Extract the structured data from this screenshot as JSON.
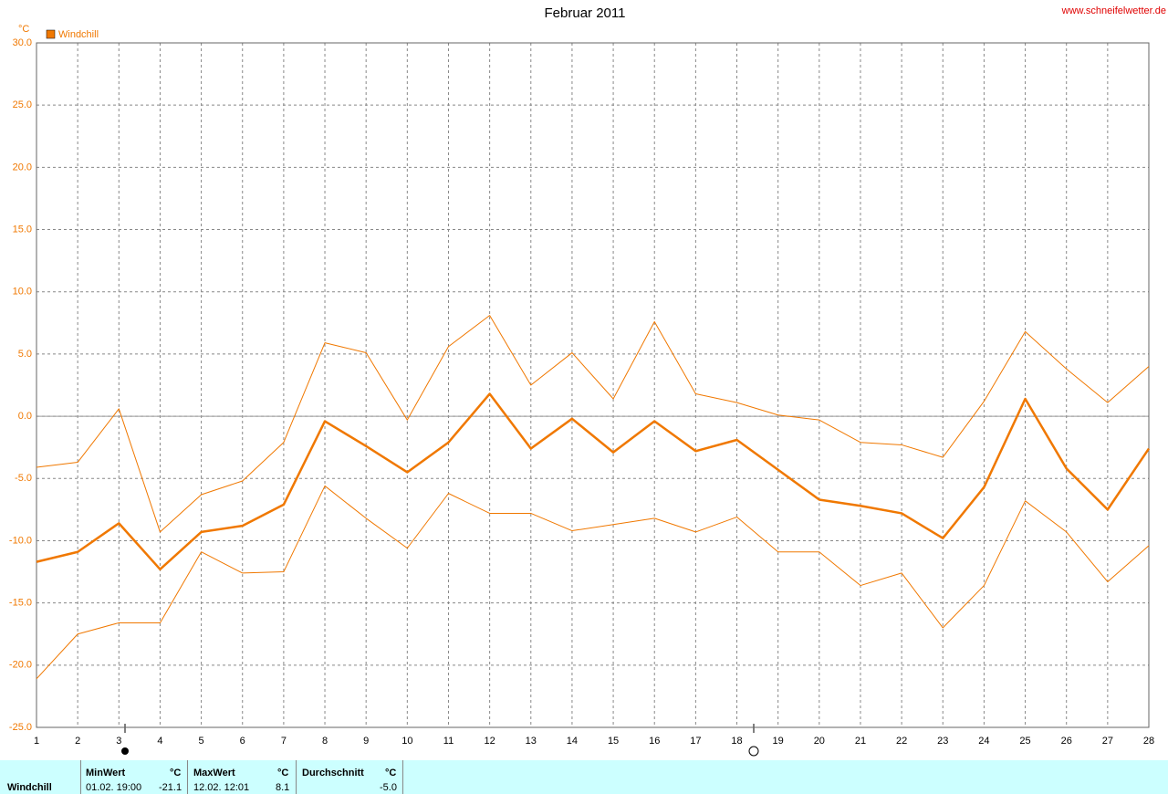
{
  "chart_data": {
    "type": "line",
    "title": "Februar 2011",
    "source": "www.schneifelwetter.de",
    "y_unit": "°C",
    "x": [
      1,
      2,
      3,
      4,
      5,
      6,
      7,
      8,
      9,
      10,
      11,
      12,
      13,
      14,
      15,
      16,
      17,
      18,
      19,
      20,
      21,
      22,
      23,
      24,
      25,
      26,
      27,
      28
    ],
    "series": [
      {
        "name": "Windchill",
        "color": "#f07800",
        "values": [
          -11.7,
          -10.9,
          -8.6,
          -12.3,
          -9.3,
          -8.8,
          -7.1,
          -0.4,
          -2.4,
          -4.5,
          -2.1,
          1.8,
          -2.6,
          -0.2,
          -2.9,
          -0.4,
          -2.8,
          -1.9,
          -4.3,
          -6.7,
          -7.2,
          -7.8,
          -9.8,
          -5.7,
          1.4,
          -4.2,
          -7.5,
          -2.6
        ]
      },
      {
        "color": "#f07800",
        "values": [
          -4.1,
          -3.7,
          0.6,
          -9.3,
          -6.3,
          -5.2,
          -2.1,
          5.9,
          5.1,
          -0.3,
          5.6,
          8.1,
          2.5,
          5.1,
          1.4,
          7.6,
          1.8,
          1.1,
          0.1,
          -0.3,
          -2.1,
          -2.3,
          -3.3,
          1.2,
          6.8,
          3.8,
          1.1,
          4.0
        ]
      },
      {
        "color": "#f07800",
        "values": [
          -21.1,
          -17.5,
          -16.6,
          -16.6,
          -10.9,
          -12.6,
          -12.5,
          -5.6,
          -8.2,
          -10.6,
          -6.2,
          -7.8,
          -7.8,
          -9.2,
          -8.7,
          -8.2,
          -9.3,
          -8.1,
          -10.9,
          -10.9,
          -13.6,
          -12.6,
          -17.0,
          -13.6,
          -6.8,
          -9.3,
          -13.3,
          -10.4
        ]
      }
    ],
    "xlim": [
      1,
      28
    ],
    "xticks": [
      1,
      2,
      3,
      4,
      5,
      6,
      7,
      8,
      9,
      10,
      11,
      12,
      13,
      14,
      15,
      16,
      17,
      18,
      19,
      20,
      21,
      22,
      23,
      24,
      25,
      26,
      27,
      28
    ],
    "ylim": [
      -25,
      30
    ],
    "yticks": [
      {
        "value": -25,
        "label": "-25.0"
      },
      {
        "value": -20,
        "label": "-20.0"
      },
      {
        "value": -15,
        "label": "-15.0"
      },
      {
        "value": -10,
        "label": "-10.0"
      },
      {
        "value": -5,
        "label": "-5.0"
      },
      {
        "value": 0,
        "label": "0.0"
      },
      {
        "value": 5,
        "label": "5.0"
      },
      {
        "value": 10,
        "label": "10.0"
      },
      {
        "value": 15,
        "label": "15.0"
      },
      {
        "value": 20,
        "label": "20.0"
      },
      {
        "value": 25,
        "label": "25.0"
      },
      {
        "value": 30,
        "label": "30.0"
      }
    ],
    "grid": true,
    "legend": "top-left"
  },
  "summary": {
    "row_label": "Windchill",
    "min": {
      "header": "MinWert",
      "unit": "°C",
      "time": "01.02.  19:00",
      "value": "-21.1"
    },
    "max": {
      "header": "MaxWert",
      "unit": "°C",
      "time": "12.02.  12:01",
      "value": "8.1"
    },
    "avg": {
      "header": "Durchschnitt",
      "unit": "°C",
      "value": "-5.0"
    }
  }
}
